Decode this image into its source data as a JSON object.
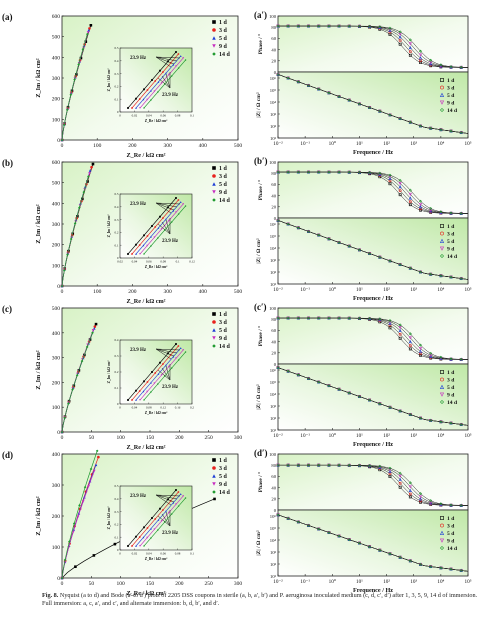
{
  "figure": {
    "caption_label": "Fig. 8.",
    "caption_text": "Nyquist (a to d) and Bode (a′ to d′) plots of 2205 DSS coupons in sterile (a, b, a′, b′) and P. aeruginosa inoculated medium (c, d, c′, d′) after 1, 3, 5, 9, 14 d of immersion. Full immersion: a, c, a′, and c′, and alternate immersion: b, d, b′, and d′."
  },
  "legend_labels": [
    "1 d",
    "3 d",
    "5 d",
    "9 d",
    "14 d"
  ],
  "series_colors": [
    "#000000",
    "#e8211c",
    "#1f3fd6",
    "#c72fc0",
    "#1e9a2e"
  ],
  "chart_data": [
    {
      "panel": "(a)",
      "type": "scatter",
      "xlabel": "Z_Re / kΩ cm²",
      "ylabel": "Z_Im / kΩ cm²",
      "xlim": [
        0,
        500
      ],
      "ylim": [
        0,
        600
      ],
      "xticks": [
        0,
        100,
        200,
        300,
        400,
        500
      ],
      "yticks": [
        0,
        100,
        200,
        300,
        400,
        500,
        600
      ],
      "series": [
        {
          "name": "1 d",
          "end": [
            82,
            555
          ]
        },
        {
          "name": "3 d",
          "end": [
            78,
            540
          ]
        },
        {
          "name": "5 d",
          "end": [
            76,
            532
          ]
        },
        {
          "name": "9 d",
          "end": [
            74,
            520
          ]
        },
        {
          "name": "14 d",
          "end": [
            72,
            512
          ]
        }
      ],
      "inset": {
        "xlabel": "Z_Re / kΩ cm²",
        "ylabel": "Z_Im / kΩ cm²",
        "xlim": [
          0,
          0.1
        ],
        "ylim": [
          0,
          0.5
        ],
        "xticks": [
          0,
          0.02,
          0.04,
          0.06,
          0.08,
          0.1
        ],
        "yticks": [
          0,
          0.1,
          0.2,
          0.3,
          0.4,
          0.5
        ],
        "annotations": [
          "23.9 Hz",
          "23.9 Hz"
        ]
      }
    },
    {
      "panel": "(b)",
      "type": "scatter",
      "xlabel": "Z_Re / kΩ cm²",
      "ylabel": "Z_Im / kΩ cm²",
      "xlim": [
        0,
        500
      ],
      "ylim": [
        0,
        600
      ],
      "xticks": [
        0,
        100,
        200,
        300,
        400,
        500
      ],
      "yticks": [
        0,
        100,
        200,
        300,
        400,
        500,
        600
      ],
      "series": [
        {
          "name": "1 d",
          "end": [
            88,
            590
          ]
        },
        {
          "name": "3 d",
          "end": [
            84,
            575
          ]
        },
        {
          "name": "5 d",
          "end": [
            80,
            560
          ]
        },
        {
          "name": "9 d",
          "end": [
            78,
            545
          ]
        },
        {
          "name": "14 d",
          "end": [
            75,
            530
          ]
        }
      ],
      "inset": {
        "xlabel": "Z_Re / kΩ cm²",
        "ylabel": "Z_Im / kΩ cm²",
        "xlim": [
          0.02,
          0.12
        ],
        "ylim": [
          0,
          0.5
        ],
        "xticks": [
          0.02,
          0.04,
          0.06,
          0.08,
          0.1,
          0.12
        ],
        "yticks": [
          0,
          0.1,
          0.2,
          0.3,
          0.4,
          0.5
        ],
        "annotations": [
          "23.9 Hz",
          "23.9 Hz"
        ]
      }
    },
    {
      "panel": "(c)",
      "type": "scatter",
      "xlabel": "Z_Re / kΩ cm²",
      "ylabel": "Z_Im / kΩ cm²",
      "xlim": [
        0,
        300
      ],
      "ylim": [
        0,
        500
      ],
      "xticks": [
        0,
        50,
        100,
        150,
        200,
        250,
        300
      ],
      "yticks": [
        0,
        100,
        200,
        300,
        400,
        500
      ],
      "series": [
        {
          "name": "1 d",
          "end": [
            58,
            435
          ]
        },
        {
          "name": "3 d",
          "end": [
            56,
            425
          ]
        },
        {
          "name": "5 d",
          "end": [
            55,
            418
          ]
        },
        {
          "name": "9 d",
          "end": [
            53,
            410
          ]
        },
        {
          "name": "14 d",
          "end": [
            52,
            400
          ]
        }
      ],
      "inset": {
        "xlabel": "Z_Re / kΩ cm²",
        "ylabel": "Z_Im / kΩ cm²",
        "xlim": [
          0,
          0.2
        ],
        "ylim": [
          0,
          0.4
        ],
        "xticks": [
          0,
          0.04,
          0.08,
          0.12,
          0.16,
          0.2
        ],
        "yticks": [
          0,
          0.1,
          0.2,
          0.3,
          0.4
        ],
        "annotations": [
          "23.9 Hz",
          "23.9 Hz"
        ]
      }
    },
    {
      "panel": "(d)",
      "type": "scatter",
      "xlabel": "Z_Re / kΩ cm²",
      "ylabel": "Z_Im / kΩ cm²",
      "xlim": [
        0,
        300
      ],
      "ylim": [
        0,
        400
      ],
      "xticks": [
        0,
        50,
        100,
        150,
        200,
        250,
        300
      ],
      "yticks": [
        0,
        100,
        200,
        300,
        400
      ],
      "series": [
        {
          "name": "1 d",
          "end": [
            260,
            255
          ]
        },
        {
          "name": "3 d",
          "end": [
            62,
            390
          ]
        },
        {
          "name": "5 d",
          "end": [
            58,
            365
          ]
        },
        {
          "name": "9 d",
          "end": [
            55,
            345
          ]
        },
        {
          "name": "14 d",
          "end": [
            60,
            410
          ]
        }
      ],
      "inset": {
        "xlabel": "Z_Re / kΩ cm²",
        "ylabel": "Z_Im / kΩ cm²",
        "xlim": [
          0,
          0.1
        ],
        "ylim": [
          0,
          0.5
        ],
        "xticks": [
          0,
          0.02,
          0.04,
          0.06,
          0.08,
          0.1
        ],
        "yticks": [
          0,
          0.1,
          0.2,
          0.3,
          0.4,
          0.5
        ],
        "annotations": [
          "23.9 Hz",
          "23.9 Hz"
        ]
      }
    },
    {
      "panel": "(a′)",
      "type": "line",
      "xlabel": "Frequence / Hz",
      "ylabel_top": "Phase / °",
      "ylabel_bottom": "|Z| / Ω cm²",
      "x_scale": "log",
      "xlim": [
        0.01,
        100000
      ],
      "xticks": [
        "10⁻²",
        "10⁻¹",
        "10⁰",
        "10¹",
        "10²",
        "10³",
        "10⁴",
        "10⁵"
      ],
      "phase": {
        "ylim": [
          0,
          100
        ],
        "yticks": [
          0,
          20,
          40,
          60,
          80,
          100
        ],
        "plateau": 82,
        "corner_hz": 700,
        "final": 8
      },
      "modulus": {
        "ylim_exp": [
          1,
          6
        ],
        "yticks": [
          "10¹",
          "10²",
          "10³",
          "10⁴",
          "10⁵",
          "10⁶"
        ],
        "start_exp": 6.3,
        "end_exp": 1.0
      }
    },
    {
      "panel": "(b′)",
      "type": "line",
      "xlabel": "Frequence / Hz",
      "ylabel_top": "Phase / °",
      "ylabel_bottom": "|Z| / Ω cm²",
      "x_scale": "log",
      "xlim": [
        0.01,
        100000
      ],
      "xticks": [
        "10⁻²",
        "10⁻¹",
        "10⁰",
        "10¹",
        "10²",
        "10³",
        "10⁴",
        "10⁵"
      ],
      "phase": {
        "ylim": [
          0,
          100
        ],
        "yticks": [
          0,
          20,
          40,
          60,
          80,
          100
        ],
        "plateau": 82,
        "corner_hz": 500,
        "final": 8
      },
      "modulus": {
        "ylim_exp": [
          1,
          6
        ],
        "yticks": [
          "10¹",
          "10²",
          "10³",
          "10⁴",
          "10⁵",
          "10⁶"
        ],
        "start_exp": 6.3,
        "end_exp": 1.0
      }
    },
    {
      "panel": "(c′)",
      "type": "line",
      "xlabel": "Frequence / Hz",
      "ylabel_top": "Phase / °",
      "ylabel_bottom": "|Z| / Ω cm²",
      "x_scale": "log",
      "xlim": [
        0.01,
        100000
      ],
      "xticks": [
        "10⁻²",
        "10⁻¹",
        "10⁰",
        "10¹",
        "10²",
        "10³",
        "10⁴",
        "10⁵"
      ],
      "phase": {
        "ylim": [
          0,
          100
        ],
        "yticks": [
          0,
          20,
          40,
          60,
          80,
          100
        ],
        "plateau": 82,
        "corner_hz": 600,
        "final": 8
      },
      "modulus": {
        "ylim_exp": [
          1,
          6
        ],
        "yticks": [
          "10¹",
          "10²",
          "10³",
          "10⁴",
          "10⁵",
          "10⁶"
        ],
        "start_exp": 6.2,
        "end_exp": 1.0
      }
    },
    {
      "panel": "(d′)",
      "type": "line",
      "xlabel": "Frequence / Hz",
      "ylabel_top": "Phase / °",
      "ylabel_bottom": "|Z| / Ω cm²",
      "x_scale": "log",
      "xlim": [
        0.01,
        100000
      ],
      "xticks": [
        "10⁻²",
        "10⁻¹",
        "10⁰",
        "10¹",
        "10²",
        "10³",
        "10⁴",
        "10⁵"
      ],
      "phase": {
        "ylim": [
          0,
          100
        ],
        "yticks": [
          0,
          20,
          40,
          60,
          80,
          100
        ],
        "plateau": 80,
        "corner_hz": 500,
        "final": 8
      },
      "modulus": {
        "ylim_exp": [
          1,
          6
        ],
        "yticks": [
          "10¹",
          "10²",
          "10³",
          "10⁴",
          "10⁵",
          "10⁶"
        ],
        "start_exp": 6.1,
        "end_exp": 1.0
      }
    }
  ]
}
